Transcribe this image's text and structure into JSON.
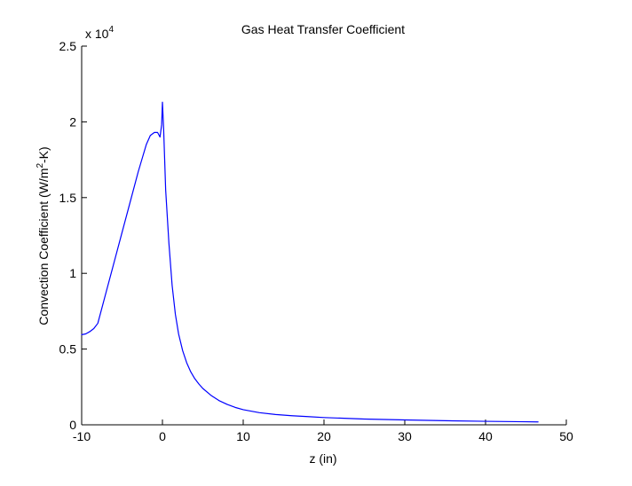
{
  "chart_data": {
    "type": "line",
    "title": "Gas Heat Transfer Coefficient",
    "xlabel": "z (in)",
    "ylabel": {
      "before_superscript": "Convection Coefficient (W/m",
      "superscript": "2",
      "after_superscript": "-K)"
    },
    "xlim": [
      -10,
      50
    ],
    "ylim": [
      0,
      25000
    ],
    "x_ticks": [
      -10,
      0,
      10,
      20,
      30,
      40,
      50
    ],
    "x_tick_labels": [
      "-10",
      "0",
      "10",
      "20",
      "30",
      "40",
      "50"
    ],
    "y_ticks": [
      0,
      5000,
      10000,
      15000,
      20000,
      25000
    ],
    "y_tick_labels": [
      "0",
      "0.5",
      "1",
      "1.5",
      "2",
      "2.5"
    ],
    "y_exponent": {
      "base": "x 10",
      "exponent": "4"
    },
    "grid": false,
    "legend": "none",
    "series": [
      {
        "color": "#0000ff",
        "x": [
          -10,
          -9.5,
          -9,
          -8.5,
          -8,
          -7,
          -6,
          -5,
          -4,
          -3,
          -2.5,
          -2,
          -1.5,
          -1,
          -0.6,
          -0.3,
          -0.1,
          0,
          0.15,
          0.4,
          0.8,
          1.2,
          1.6,
          2,
          2.5,
          3,
          3.5,
          4,
          4.5,
          5,
          6,
          7,
          8,
          9,
          10,
          12,
          14,
          16,
          18,
          20,
          25,
          30,
          35,
          40,
          45,
          46.5
        ],
        "y": [
          5950,
          6000,
          6150,
          6350,
          6700,
          8700,
          10700,
          12700,
          14700,
          16700,
          17600,
          18500,
          19100,
          19300,
          19300,
          19000,
          19800,
          21300,
          19500,
          15500,
          12000,
          9200,
          7300,
          6000,
          4900,
          4100,
          3500,
          3050,
          2700,
          2400,
          1950,
          1600,
          1350,
          1150,
          1000,
          800,
          680,
          600,
          540,
          480,
          380,
          320,
          270,
          230,
          200,
          190
        ]
      }
    ]
  }
}
